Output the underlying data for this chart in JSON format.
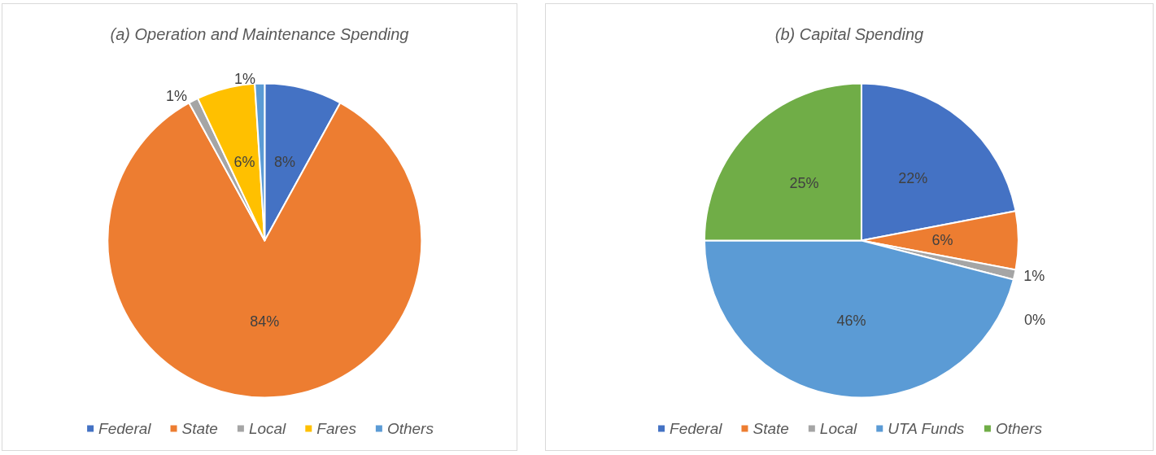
{
  "chart_data": [
    {
      "type": "pie",
      "title": "(a) Operation and Maintenance Spending",
      "categories": [
        "Federal",
        "State",
        "Local",
        "Fares",
        "Others"
      ],
      "values": [
        8,
        84,
        1,
        6,
        1
      ],
      "colors": [
        "#4472c4",
        "#ed7d31",
        "#a5a5a5",
        "#ffc000",
        "#5b9bd5"
      ],
      "value_labels": [
        "8%",
        "84%",
        "1%",
        "6%",
        "1%"
      ],
      "legend": "bottom"
    },
    {
      "type": "pie",
      "title": "(b) Capital Spending",
      "categories": [
        "Federal",
        "State",
        "Local",
        null,
        "UTA Funds",
        "Others"
      ],
      "values": [
        22,
        6,
        1,
        0,
        46,
        25
      ],
      "colors": [
        "#4472c4",
        "#ed7d31",
        "#a5a5a5",
        "#ffc000",
        "#5b9bd5",
        "#70ad47"
      ],
      "value_labels": [
        "22%",
        "6%",
        "1%",
        "0%",
        "46%",
        "25%"
      ],
      "legend": "bottom"
    }
  ]
}
